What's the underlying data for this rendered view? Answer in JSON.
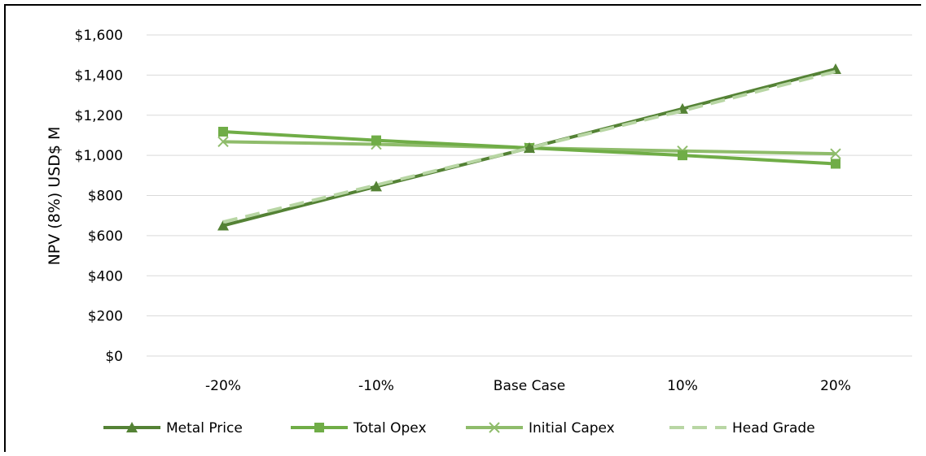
{
  "chart_data": {
    "type": "line",
    "categories": [
      "-20%",
      "-10%",
      "Base Case",
      "10%",
      "20%"
    ],
    "ylabel": "NPV (8%) USD$ M",
    "ylim": [
      0,
      1600
    ],
    "yticks": [
      0,
      200,
      400,
      600,
      800,
      1000,
      1200,
      1400,
      1600
    ],
    "ytick_labels": [
      "$0",
      "$200",
      "$400",
      "$600",
      "$800",
      "$1,000",
      "$1,200",
      "$1,400",
      "$1,600"
    ],
    "grid": true,
    "legend_position": "bottom",
    "series": [
      {
        "name": "Metal Price",
        "values": [
          650,
          845,
          1037,
          1232,
          1430
        ],
        "color": "#548235",
        "marker": "triangle",
        "dash": false
      },
      {
        "name": "Total Opex",
        "values": [
          1118,
          1075,
          1037,
          1000,
          958
        ],
        "color": "#70ad47",
        "marker": "square",
        "dash": false
      },
      {
        "name": "Initial Capex",
        "values": [
          1068,
          1055,
          1037,
          1022,
          1008
        ],
        "color": "#8fbc6b",
        "marker": "x",
        "dash": false
      },
      {
        "name": "Head Grade",
        "values": [
          668,
          852,
          1037,
          1222,
          1418
        ],
        "color": "#b8d6a4",
        "marker": "none",
        "dash": true
      }
    ]
  }
}
